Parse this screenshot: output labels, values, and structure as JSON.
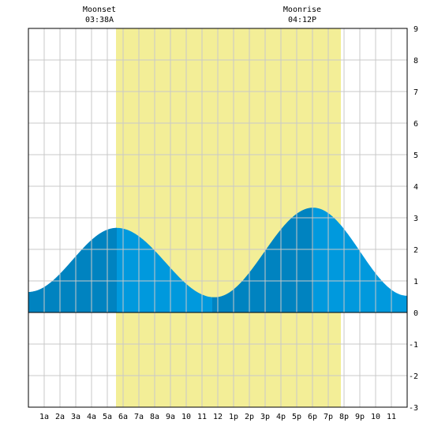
{
  "moonset": {
    "label": "Moonset",
    "time": "03:38A"
  },
  "moonrise": {
    "label": "Moonrise",
    "time": "04:12P"
  },
  "colors": {
    "grid": "#c8c8c8",
    "daylight": "#f3ee97",
    "tide_light": "#0099dd",
    "tide_dark": "#0083c0",
    "frame": "#000000"
  },
  "chart_data": {
    "type": "area",
    "x_range": [
      0,
      24
    ],
    "y_range": [
      -3,
      9
    ],
    "x_tick_labels": [
      "1a",
      "2a",
      "3a",
      "4a",
      "5a",
      "6a",
      "7a",
      "8a",
      "9a",
      "10",
      "11",
      "12",
      "1p",
      "2p",
      "3p",
      "4p",
      "5p",
      "6p",
      "7p",
      "8p",
      "9p",
      "10",
      "11"
    ],
    "y_tick_labels": [
      "-3",
      "-2",
      "-1",
      "0",
      "1",
      "2",
      "3",
      "4",
      "5",
      "6",
      "7",
      "8",
      "9"
    ],
    "daylight_hours": [
      5.55,
      19.8
    ],
    "dark_band_hours": [
      [
        0,
        5.6
      ],
      [
        11.65,
        18.05
      ]
    ],
    "tide_extrema": [
      {
        "hour": 0.0,
        "height": 0.65
      },
      {
        "hour": 5.6,
        "height": 2.68
      },
      {
        "hour": 11.8,
        "height": 0.48
      },
      {
        "hour": 18.05,
        "height": 3.32
      },
      {
        "hour": 24.0,
        "height": 0.53
      }
    ],
    "grid": true
  }
}
